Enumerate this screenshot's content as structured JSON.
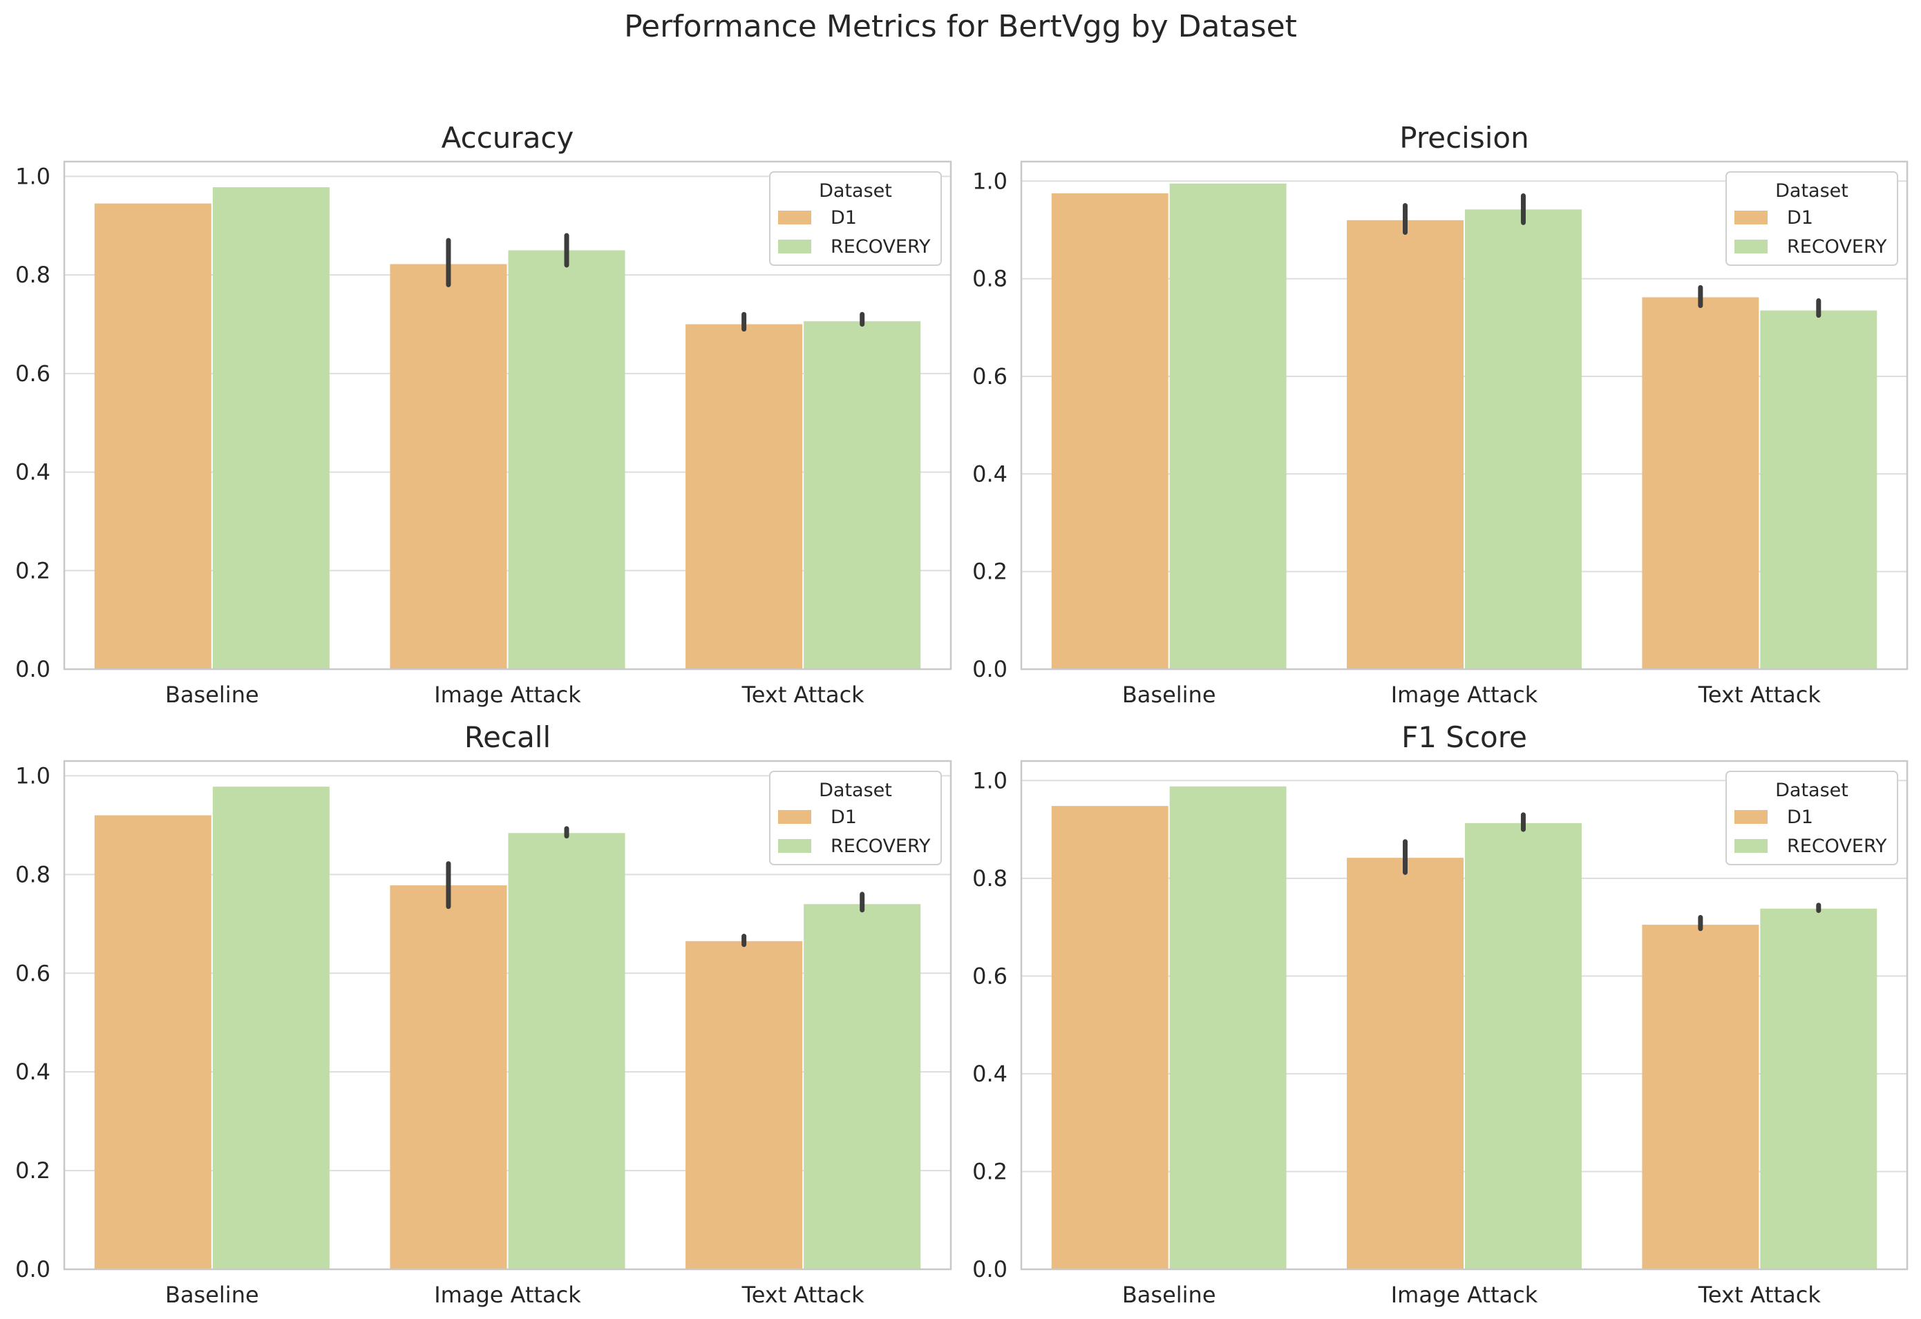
{
  "figure_title": "Performance Metrics for BertVgg by Dataset",
  "colors": {
    "D1": "#ebbc81",
    "RECOVERY": "#c0ddA7",
    "error_bar": "#3d3d3d",
    "grid": "#dddddd",
    "frame": "#c8c8c8"
  },
  "chart_data": [
    {
      "type": "bar",
      "title": "Accuracy",
      "categories": [
        "Baseline",
        "Image Attack",
        "Text Attack"
      ],
      "ylim": [
        0,
        1.03
      ],
      "yticks": [
        "0.0",
        "0.2",
        "0.4",
        "0.6",
        "0.8",
        "1.0"
      ],
      "grid": true,
      "legend": {
        "title": "Dataset",
        "position": "top-right"
      },
      "series": [
        {
          "name": "D1",
          "values": [
            0.945,
            0.822,
            0.7
          ],
          "error": [
            null,
            [
              0.78,
              0.87
            ],
            [
              0.69,
              0.72
            ]
          ]
        },
        {
          "name": "RECOVERY",
          "values": [
            0.978,
            0.85,
            0.706
          ],
          "error": [
            null,
            [
              0.82,
              0.88
            ],
            [
              0.7,
              0.72
            ]
          ]
        }
      ]
    },
    {
      "type": "bar",
      "title": "Precision",
      "categories": [
        "Baseline",
        "Image Attack",
        "Text Attack"
      ],
      "ylim": [
        0,
        1.04
      ],
      "yticks": [
        "0.0",
        "0.2",
        "0.4",
        "0.6",
        "0.8",
        "1.0"
      ],
      "grid": true,
      "legend": {
        "title": "Dataset",
        "position": "top-right"
      },
      "series": [
        {
          "name": "D1",
          "values": [
            0.975,
            0.92,
            0.762
          ],
          "error": [
            null,
            [
              0.895,
              0.95
            ],
            [
              0.745,
              0.782
            ]
          ]
        },
        {
          "name": "RECOVERY",
          "values": [
            0.995,
            0.942,
            0.735
          ],
          "error": [
            null,
            [
              0.915,
              0.97
            ],
            [
              0.725,
              0.755
            ]
          ]
        }
      ]
    },
    {
      "type": "bar",
      "title": "Recall",
      "categories": [
        "Baseline",
        "Image Attack",
        "Text Attack"
      ],
      "ylim": [
        0,
        1.03
      ],
      "yticks": [
        "0.0",
        "0.2",
        "0.4",
        "0.6",
        "0.8",
        "1.0"
      ],
      "grid": true,
      "legend": {
        "title": "Dataset",
        "position": "top-right"
      },
      "series": [
        {
          "name": "D1",
          "values": [
            0.92,
            0.778,
            0.665
          ],
          "error": [
            null,
            [
              0.735,
              0.822
            ],
            [
              0.658,
              0.675
            ]
          ]
        },
        {
          "name": "RECOVERY",
          "values": [
            0.978,
            0.884,
            0.74
          ],
          "error": [
            null,
            [
              0.878,
              0.893
            ],
            [
              0.728,
              0.76
            ]
          ]
        }
      ]
    },
    {
      "type": "bar",
      "title": "F1 Score",
      "categories": [
        "Baseline",
        "Image Attack",
        "Text Attack"
      ],
      "ylim": [
        0,
        1.04
      ],
      "yticks": [
        "0.0",
        "0.2",
        "0.4",
        "0.6",
        "0.8",
        "1.0"
      ],
      "grid": true,
      "legend": {
        "title": "Dataset",
        "position": "top-right"
      },
      "series": [
        {
          "name": "D1",
          "values": [
            0.948,
            0.842,
            0.705
          ],
          "error": [
            null,
            [
              0.812,
              0.875
            ],
            [
              0.697,
              0.72
            ]
          ]
        },
        {
          "name": "RECOVERY",
          "values": [
            0.988,
            0.913,
            0.738
          ],
          "error": [
            null,
            [
              0.9,
              0.93
            ],
            [
              0.734,
              0.745
            ]
          ]
        }
      ]
    }
  ]
}
